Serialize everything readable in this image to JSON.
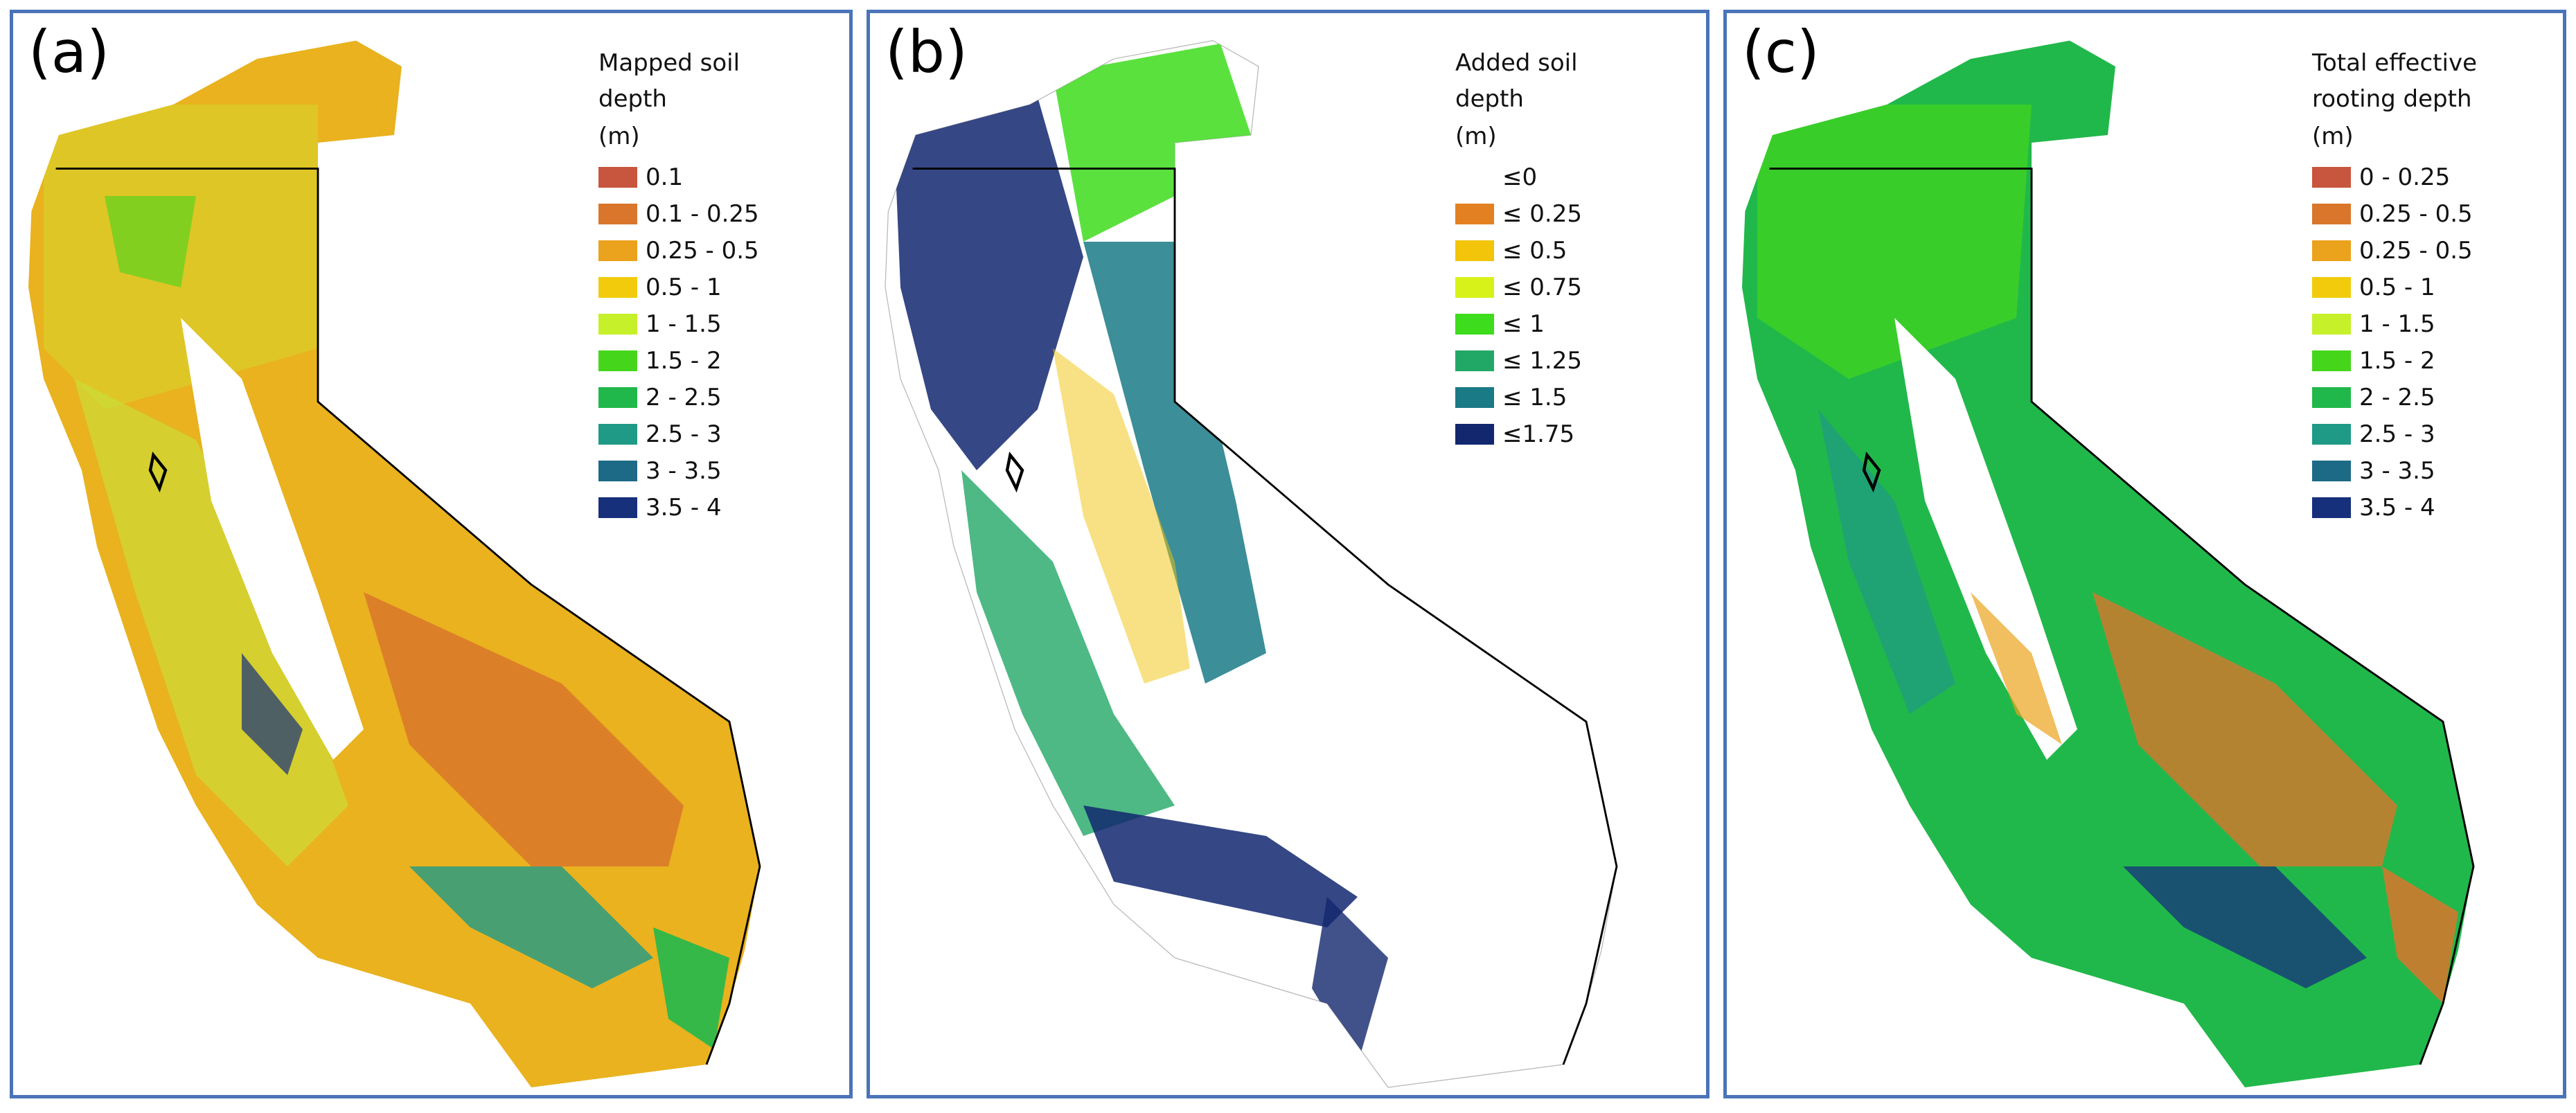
{
  "panels": [
    {
      "letter": "(a)",
      "legend": {
        "title_lines": [
          "Mapped soil",
          "depth"
        ],
        "unit": "(m)",
        "items": [
          {
            "label": "0.1",
            "color": "#c8553d"
          },
          {
            "label": "0.1 - 0.25",
            "color": "#d9762b"
          },
          {
            "label": "0.25 - 0.5",
            "color": "#eba21c"
          },
          {
            "label": "0.5 - 1",
            "color": "#f2cc0c"
          },
          {
            "label": "1 - 1.5",
            "color": "#c6f02a"
          },
          {
            "label": "1.5 - 2",
            "color": "#45d61c"
          },
          {
            "label": "2 - 2.5",
            "color": "#21b84b"
          },
          {
            "label": "2.5 - 3",
            "color": "#1f9a86"
          },
          {
            "label": "3 - 3.5",
            "color": "#1d6a86"
          },
          {
            "label": "3.5 - 4",
            "color": "#16307c"
          }
        ]
      }
    },
    {
      "letter": "(b)",
      "legend": {
        "title_lines": [
          "Added soil",
          "depth"
        ],
        "unit": "(m)",
        "items": [
          {
            "label": "≤0",
            "color": "#ffffff"
          },
          {
            "label": "≤ 0.25",
            "color": "#e38122"
          },
          {
            "label": "≤ 0.5",
            "color": "#f2c40a"
          },
          {
            "label": "≤ 0.75",
            "color": "#d7f219"
          },
          {
            "label": "≤ 1",
            "color": "#3ddc1c"
          },
          {
            "label": "≤ 1.25",
            "color": "#22a866"
          },
          {
            "label": "≤ 1.5",
            "color": "#1a7a86"
          },
          {
            "label": "≤1.75",
            "color": "#12276e"
          }
        ]
      }
    },
    {
      "letter": "(c)",
      "legend": {
        "title_lines": [
          "Total effective",
          "rooting depth"
        ],
        "unit": "(m)",
        "items": [
          {
            "label": "0 - 0.25",
            "color": "#c8553d"
          },
          {
            "label": "0.25 - 0.5",
            "color": "#d9762b"
          },
          {
            "label": "0.25 - 0.5",
            "color": "#eba21c"
          },
          {
            "label": "0.5 - 1",
            "color": "#f2cc0c"
          },
          {
            "label": "1 - 1.5",
            "color": "#c6f02a"
          },
          {
            "label": "1.5 - 2",
            "color": "#45d61c"
          },
          {
            "label": "2 - 2.5",
            "color": "#21b84b"
          },
          {
            "label": "2.5 - 3",
            "color": "#1f9a86"
          },
          {
            "label": "3 - 3.5",
            "color": "#1d6a86"
          },
          {
            "label": "3.5 - 4",
            "color": "#16307c"
          }
        ]
      }
    }
  ]
}
